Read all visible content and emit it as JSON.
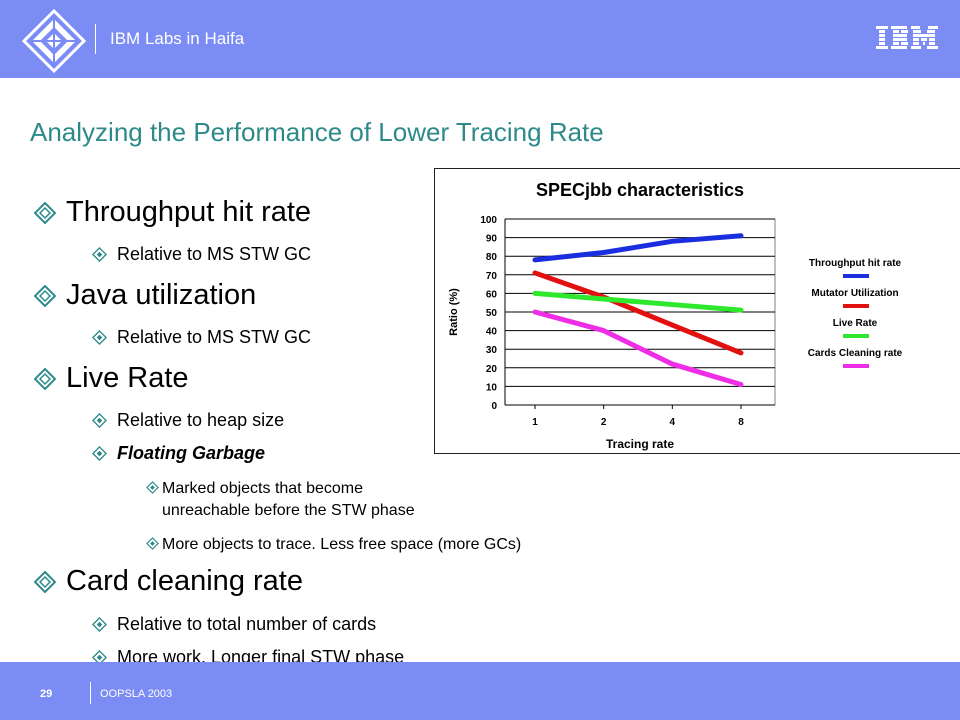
{
  "header": {
    "lab_name": "IBM Labs in Haifa",
    "logo_icon": "haifa-diamond-logo-icon",
    "brand_icon": "ibm-logo-icon",
    "brand_color": "#7b8cf4"
  },
  "slide": {
    "title": "Analyzing  the Performance of Lower Tracing Rate",
    "title_color": "#2e8a8a",
    "bullet_icon": "diamond-bullet-icon"
  },
  "bullets": [
    {
      "level": 1,
      "text": "Throughput  hit rate"
    },
    {
      "level": 2,
      "text": "Relative to MS STW GC"
    },
    {
      "level": 1,
      "text": "Java  utilization"
    },
    {
      "level": 2,
      "text": "Relative to MS STW GC"
    },
    {
      "level": 1,
      "text": "Live Rate"
    },
    {
      "level": 2,
      "text": "Relative to heap size"
    },
    {
      "level": 2,
      "text": "Floating Garbage",
      "style": "bold-italic"
    },
    {
      "level": 3,
      "lines": [
        "Marked objects that become",
        "unreachable before the STW phase"
      ]
    },
    {
      "level": 3,
      "text": "More objects to trace. Less free space (more GCs)"
    },
    {
      "level": 1,
      "text": "Card cleaning  rate"
    },
    {
      "level": 2,
      "text": "Relative to total number of cards"
    },
    {
      "level": 2,
      "text": "More work. Longer final STW phase"
    }
  ],
  "chart_data": {
    "type": "line",
    "title": "SPECjbb characteristics",
    "xlabel": "Tracing rate",
    "ylabel": "Ratio (%)",
    "categories": [
      "1",
      "2",
      "4",
      "8"
    ],
    "ylim": [
      0,
      100
    ],
    "yticks": [
      "0",
      "10",
      "20",
      "30",
      "40",
      "50",
      "60",
      "70",
      "80",
      "90",
      "100"
    ],
    "grid": true,
    "legend_position": "right",
    "series": [
      {
        "name": "Throughput hit rate",
        "color": "#1a2ee0",
        "values": [
          78,
          82,
          88,
          91
        ]
      },
      {
        "name": "Mutator Utilization",
        "color": "#e31010",
        "values": [
          71,
          58,
          43,
          28
        ]
      },
      {
        "name": "Live Rate",
        "color": "#2ee82e",
        "values": [
          60,
          57,
          54,
          51
        ]
      },
      {
        "name": "Cards Cleaning rate",
        "color": "#ee2ee6",
        "values": [
          50,
          40,
          22,
          11
        ]
      }
    ]
  },
  "footer": {
    "page": "29",
    "conference": "OOPSLA 2003"
  }
}
